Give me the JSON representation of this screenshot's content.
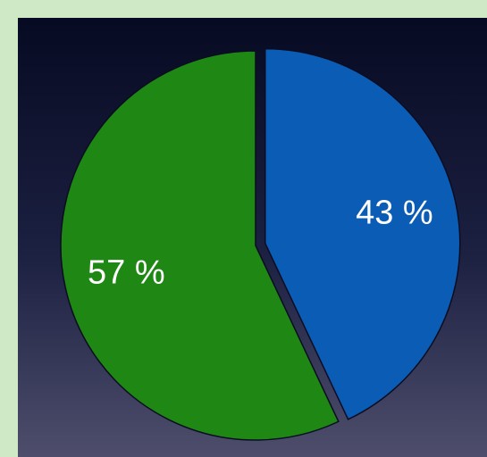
{
  "chart_data": {
    "type": "pie",
    "values": [
      43,
      57
    ],
    "value_labels": [
      "43 %",
      "57 %"
    ],
    "colors": [
      "#0b5cb5",
      "#1f8714"
    ],
    "start_angle": 0,
    "direction": "clockwise",
    "explode": [
      true,
      false
    ]
  }
}
